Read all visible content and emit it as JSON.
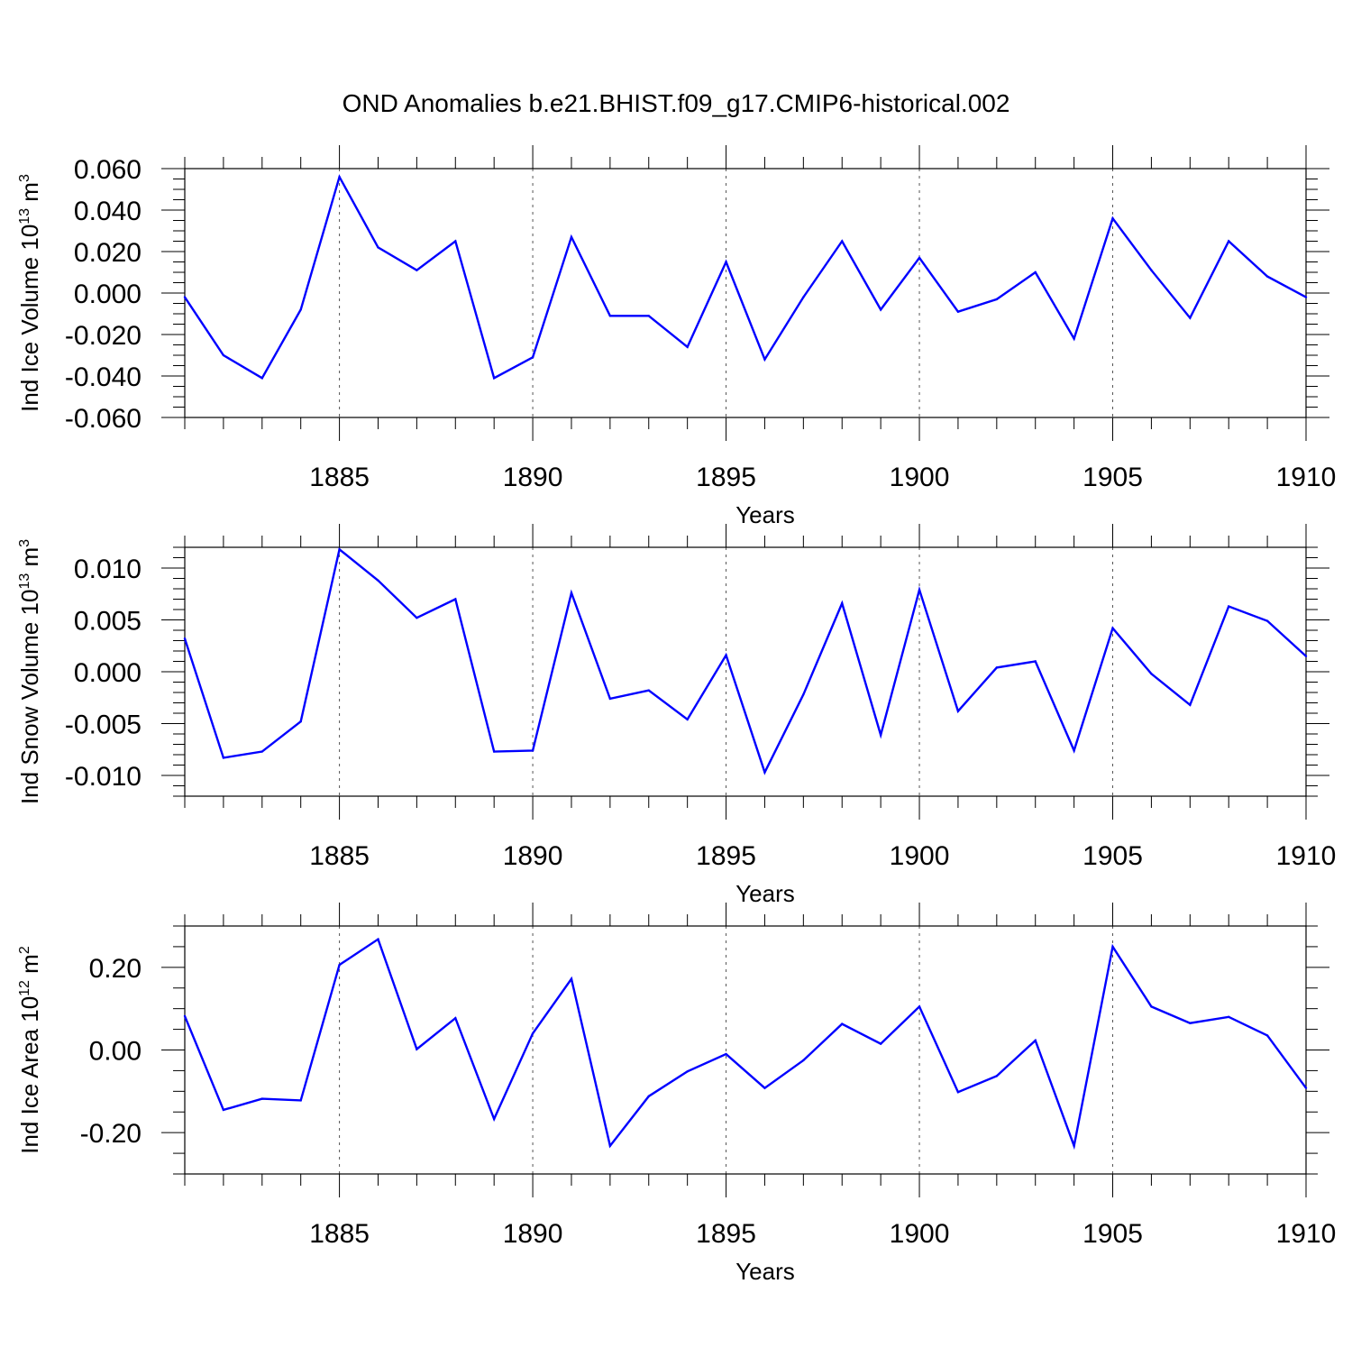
{
  "title": "OND Anomalies b.e21.BHIST.f09_g17.CMIP6-historical.002",
  "colors": {
    "line": "#0000ff",
    "axis": "#000000",
    "grid": "#555555",
    "background": "#ffffff"
  },
  "chart_data": [
    {
      "type": "line",
      "title": "OND Anomalies b.e21.BHIST.f09_g17.CMIP6-historical.002",
      "ylabel": "Ind Ice Volume 10",
      "ylabel_sup1": "13",
      "ylabel_unit": " m",
      "ylabel_sup2": "3",
      "xlabel": "Years",
      "xlim": [
        1881,
        1910
      ],
      "ylim": [
        -0.06,
        0.06
      ],
      "yticks": [
        -0.06,
        -0.04,
        -0.02,
        0.0,
        0.02,
        0.04,
        0.06
      ],
      "ytick_labels": [
        "-0.060",
        "-0.040",
        "-0.020",
        "0.000",
        "0.020",
        "0.040",
        "0.060"
      ],
      "yminor_step": 0.005,
      "xticks": [
        1885,
        1890,
        1895,
        1900,
        1905,
        1910
      ],
      "xtick_labels": [
        "1885",
        "1890",
        "1895",
        "1900",
        "1905",
        "1910"
      ],
      "x": [
        1881,
        1882,
        1883,
        1884,
        1885,
        1886,
        1887,
        1888,
        1889,
        1890,
        1891,
        1892,
        1893,
        1894,
        1895,
        1896,
        1897,
        1898,
        1899,
        1900,
        1901,
        1902,
        1903,
        1904,
        1905,
        1906,
        1907,
        1908,
        1909,
        1910
      ],
      "series": [
        {
          "name": "Ind Ice Volume",
          "values": [
            -0.002,
            -0.03,
            -0.041,
            -0.008,
            0.056,
            0.022,
            0.011,
            0.025,
            -0.041,
            -0.031,
            0.027,
            -0.011,
            -0.011,
            -0.026,
            0.015,
            -0.032,
            -0.002,
            0.025,
            -0.008,
            0.017,
            -0.009,
            -0.003,
            0.01,
            -0.022,
            0.036,
            0.011,
            -0.012,
            0.025,
            0.008,
            -0.002
          ]
        }
      ]
    },
    {
      "type": "line",
      "ylabel": "Ind Snow Volume 10",
      "ylabel_sup1": "13",
      "ylabel_unit": " m",
      "ylabel_sup2": "3",
      "xlabel": "Years",
      "xlim": [
        1881,
        1910
      ],
      "ylim": [
        -0.012,
        0.012
      ],
      "yticks": [
        -0.01,
        -0.005,
        0.0,
        0.005,
        0.01
      ],
      "ytick_labels": [
        "-0.010",
        "-0.005",
        "0.000",
        "0.005",
        "0.010"
      ],
      "yminor_step": 0.001,
      "xticks": [
        1885,
        1890,
        1895,
        1900,
        1905,
        1910
      ],
      "xtick_labels": [
        "1885",
        "1890",
        "1895",
        "1900",
        "1905",
        "1910"
      ],
      "x": [
        1881,
        1882,
        1883,
        1884,
        1885,
        1886,
        1887,
        1888,
        1889,
        1890,
        1891,
        1892,
        1893,
        1894,
        1895,
        1896,
        1897,
        1898,
        1899,
        1900,
        1901,
        1902,
        1903,
        1904,
        1905,
        1906,
        1907,
        1908,
        1909,
        1910
      ],
      "series": [
        {
          "name": "Ind Snow Volume",
          "values": [
            0.0032,
            -0.0083,
            -0.0077,
            -0.0048,
            0.0118,
            0.0088,
            0.0052,
            0.007,
            -0.0077,
            -0.0076,
            0.0076,
            -0.0026,
            -0.0018,
            -0.0046,
            0.0016,
            -0.0097,
            -0.0022,
            0.0066,
            -0.0061,
            0.0079,
            -0.0038,
            0.0004,
            0.001,
            -0.0076,
            0.0042,
            -0.0002,
            -0.0032,
            0.0063,
            0.0049,
            0.0015
          ]
        }
      ]
    },
    {
      "type": "line",
      "ylabel": "Ind Ice Area 10",
      "ylabel_sup1": "12",
      "ylabel_unit": " m",
      "ylabel_sup2": "2",
      "xlabel": "Years",
      "xlim": [
        1881,
        1910
      ],
      "ylim": [
        -0.3,
        0.3
      ],
      "yticks": [
        -0.2,
        0.0,
        0.2
      ],
      "ytick_labels": [
        "-0.20",
        "0.00",
        "0.20"
      ],
      "yminor_step": 0.05,
      "xticks": [
        1885,
        1890,
        1895,
        1900,
        1905,
        1910
      ],
      "xtick_labels": [
        "1885",
        "1890",
        "1895",
        "1900",
        "1905",
        "1910"
      ],
      "x": [
        1881,
        1882,
        1883,
        1884,
        1885,
        1886,
        1887,
        1888,
        1889,
        1890,
        1891,
        1892,
        1893,
        1894,
        1895,
        1896,
        1897,
        1898,
        1899,
        1900,
        1901,
        1902,
        1903,
        1904,
        1905,
        1906,
        1907,
        1908,
        1909,
        1910
      ],
      "series": [
        {
          "name": "Ind Ice Area",
          "values": [
            0.082,
            -0.145,
            -0.118,
            -0.122,
            0.206,
            0.268,
            0.002,
            0.077,
            -0.167,
            0.04,
            0.172,
            -0.232,
            -0.112,
            -0.052,
            -0.01,
            -0.092,
            -0.025,
            0.063,
            0.015,
            0.105,
            -0.102,
            -0.063,
            0.023,
            -0.232,
            0.25,
            0.105,
            0.065,
            0.08,
            0.035,
            -0.092
          ]
        }
      ]
    }
  ]
}
